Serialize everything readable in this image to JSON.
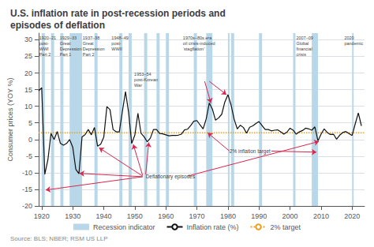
{
  "chart_data": {
    "type": "line",
    "title": "U.S. inflation rate in post-recession periods and\nepisodes of deflation",
    "ylabel": "Consumer prices (YOY %)",
    "source": "Source: BLS; NBER; RSM US LLP",
    "x": [
      1919,
      1920,
      1921,
      1922,
      1923,
      1924,
      1925,
      1926,
      1927,
      1928,
      1929,
      1930,
      1931,
      1932,
      1933,
      1934,
      1935,
      1936,
      1937,
      1938,
      1939,
      1940,
      1941,
      1942,
      1943,
      1944,
      1945,
      1946,
      1947,
      1948,
      1949,
      1950,
      1951,
      1952,
      1953,
      1954,
      1955,
      1956,
      1957,
      1958,
      1959,
      1960,
      1961,
      1962,
      1963,
      1964,
      1965,
      1966,
      1967,
      1968,
      1969,
      1970,
      1971,
      1972,
      1973,
      1974,
      1975,
      1976,
      1977,
      1978,
      1979,
      1980,
      1981,
      1982,
      1983,
      1984,
      1985,
      1986,
      1987,
      1988,
      1989,
      1990,
      1991,
      1992,
      1993,
      1994,
      1995,
      1996,
      1997,
      1998,
      1999,
      2000,
      2001,
      2002,
      2003,
      2004,
      2005,
      2006,
      2007,
      2008,
      2009,
      2010,
      2011,
      2012,
      2013,
      2014,
      2015,
      2016,
      2017,
      2018,
      2019,
      2020,
      2021,
      2022,
      2023
    ],
    "series": [
      {
        "name": "Inflation rate (%)",
        "color": "#111111",
        "values": [
          14.6,
          15.6,
          -10.5,
          -6.1,
          1.8,
          0.0,
          2.4,
          -1.1,
          -1.7,
          -1.2,
          0.0,
          -2.3,
          -9.0,
          -10.3,
          0.8,
          1.5,
          3.0,
          1.4,
          3.6,
          -2.0,
          -1.4,
          0.7,
          9.9,
          9.0,
          3.0,
          2.3,
          2.3,
          8.5,
          14.4,
          8.1,
          -1.2,
          1.3,
          7.9,
          1.9,
          0.8,
          -0.7,
          0.4,
          3.0,
          3.0,
          1.8,
          1.7,
          1.4,
          1.1,
          1.2,
          1.2,
          1.3,
          1.6,
          2.9,
          3.1,
          4.2,
          5.5,
          5.7,
          4.4,
          3.2,
          6.2,
          11.0,
          9.1,
          5.8,
          6.5,
          7.6,
          11.3,
          13.5,
          10.4,
          6.1,
          3.2,
          4.3,
          3.6,
          1.9,
          3.7,
          4.1,
          4.8,
          5.4,
          4.2,
          3.0,
          3.0,
          2.6,
          2.8,
          2.9,
          2.3,
          1.6,
          2.2,
          3.4,
          2.8,
          1.6,
          2.3,
          2.7,
          3.4,
          3.2,
          2.8,
          3.8,
          -0.4,
          1.6,
          3.2,
          2.1,
          1.5,
          1.6,
          0.1,
          1.3,
          2.1,
          2.4,
          1.8,
          1.2,
          4.7,
          8.0,
          4.1
        ]
      }
    ],
    "target": {
      "name": "2% target",
      "value": 2.0,
      "color": "#e8a020",
      "line_style": "dotted"
    },
    "recession_bands": {
      "name": "Recession indicator",
      "color": "#b8d8ea",
      "ranges": [
        [
          1920,
          1921
        ],
        [
          1923,
          1924
        ],
        [
          1926,
          1927
        ],
        [
          1929,
          1933
        ],
        [
          1937,
          1938
        ],
        [
          1945,
          1946
        ],
        [
          1948,
          1949
        ],
        [
          1953,
          1954
        ],
        [
          1957,
          1958
        ],
        [
          1960,
          1961
        ],
        [
          1969,
          1970
        ],
        [
          1973,
          1975
        ],
        [
          1980,
          1980.5
        ],
        [
          1981,
          1982
        ],
        [
          1990,
          1991
        ],
        [
          2001,
          2001.75
        ],
        [
          2007,
          2009
        ],
        [
          2020,
          2020.5
        ]
      ]
    },
    "annotations": [
      {
        "text": "1920–21\npost-\nWWI\nPart 2",
        "x": 1919.2,
        "y": 31.5
      },
      {
        "text": "1929–33\nGreat\nDepression\nPart 1",
        "x": 1925.8,
        "y": 31.5
      },
      {
        "text": "1937–38\nGreat\nDepression\nPart 2",
        "x": 1933.2,
        "y": 31.5
      },
      {
        "text": "1948–49\npost-\nWWII",
        "x": 1942.5,
        "y": 31.5
      },
      {
        "text": "1953–54\npost-Korean\nWar",
        "x": 1949.8,
        "y": 20.5
      },
      {
        "text": "1970s–80s era\noil crisis-induced\n‘stagflation’",
        "x": 1965.5,
        "y": 31.5,
        "arrows": [
          {
            "from": [
              1972.5,
              17.5
            ],
            "to": [
              1974.5,
              11.0
            ]
          },
          {
            "from": [
              1974.0,
              17.5
            ],
            "to": [
              1979.5,
              13.5
            ]
          }
        ]
      },
      {
        "text": "2007–09\nGlobal\nfinancial\ncrisis",
        "x": 2002.0,
        "y": 31.5
      },
      {
        "text": "2020\npandemic",
        "x": 2017.5,
        "y": 31.5
      },
      {
        "text": "Deflationary episodes",
        "x": 1953.5,
        "y": -11.0,
        "arrows": [
          {
            "from": [
              1952.5,
              -11.2
            ],
            "to": [
              1921.3,
              -15.2
            ]
          },
          {
            "from": [
              1952.5,
              -11.2
            ],
            "to": [
              1932.2,
              -10.2
            ]
          },
          {
            "from": [
              1952.5,
              -11.0
            ],
            "to": [
              1938.5,
              -2.5
            ]
          },
          {
            "from": [
              1952.5,
              -10.8
            ],
            "to": [
              1949.5,
              -1.5
            ]
          },
          {
            "from": [
              1953.5,
              -10.5
            ],
            "to": [
              1954.5,
              -0.9
            ]
          },
          {
            "from": [
              1967.0,
              -11.0
            ],
            "to": [
              2009.3,
              -0.6
            ]
          }
        ]
      },
      {
        "text": "2% inflation target",
        "x": 1980.5,
        "y": -3.5,
        "arrows": [
          {
            "from": [
              1980.5,
              -3.5
            ],
            "to": [
              1973.5,
              2.0
            ]
          },
          {
            "from": [
              1994.0,
              -3.5
            ],
            "to": [
              2008.5,
              -3.8
            ]
          }
        ]
      }
    ],
    "xlim": [
      1919,
      2024
    ],
    "xticks": [
      1920,
      1930,
      1940,
      1950,
      1960,
      1970,
      1980,
      1990,
      2000,
      2010,
      2020
    ],
    "ylim": [
      -20,
      32
    ],
    "yticks": [
      -20,
      -15,
      -10,
      -5,
      0,
      5,
      10,
      15,
      20,
      25,
      30
    ],
    "grid": true,
    "legend": "bottom"
  }
}
